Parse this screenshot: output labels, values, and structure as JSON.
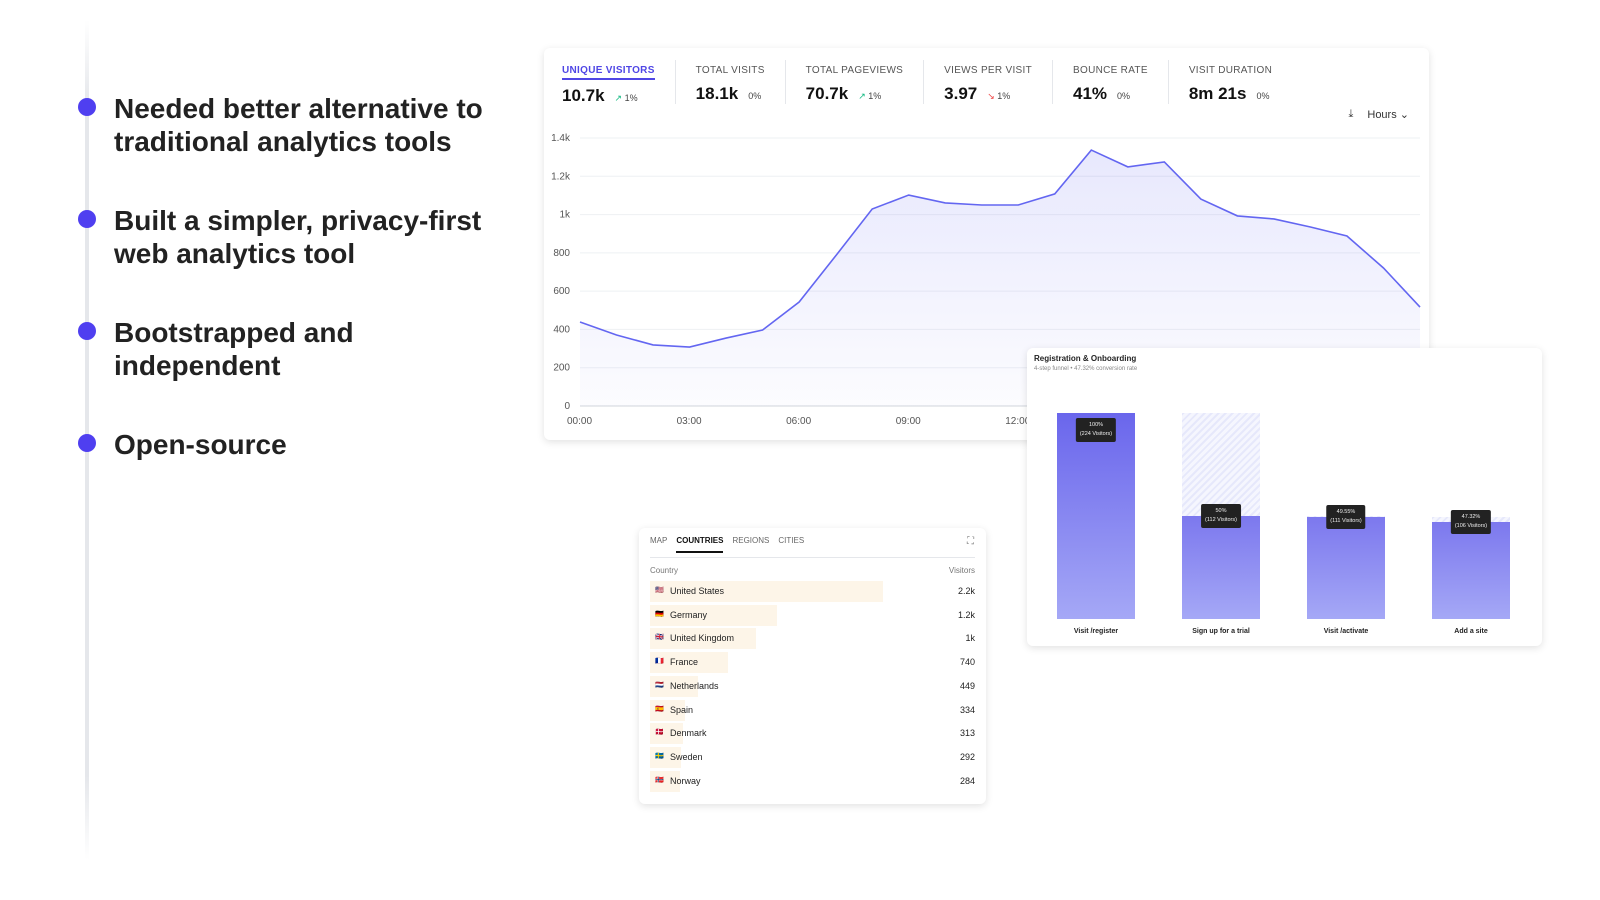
{
  "bullets": [
    "Needed better alternative to traditional analytics tools",
    "Built a simpler, privacy-first web analytics tool",
    "Bootstrapped and independent",
    "Open-source"
  ],
  "stats": [
    {
      "label": "UNIQUE VISITORS",
      "value": "10.7k",
      "change": "1%",
      "trend": "up",
      "active": true
    },
    {
      "label": "TOTAL VISITS",
      "value": "18.1k",
      "change": "0%",
      "trend": "flat"
    },
    {
      "label": "TOTAL PAGEVIEWS",
      "value": "70.7k",
      "change": "1%",
      "trend": "up"
    },
    {
      "label": "VIEWS PER VISIT",
      "value": "3.97",
      "change": "1%",
      "trend": "down"
    },
    {
      "label": "BOUNCE RATE",
      "value": "41%",
      "change": "0%",
      "trend": "flat"
    },
    {
      "label": "VISIT DURATION",
      "value": "8m 21s",
      "change": "0%",
      "trend": "flat"
    }
  ],
  "interval": {
    "label": "Hours",
    "download_icon": "download-icon"
  },
  "colors": {
    "accent": "#4f46e5",
    "bullet": "#4f3ff0",
    "up": "#10b981",
    "down": "#ef4444"
  },
  "chart_data": {
    "type": "area",
    "ylim": [
      0,
      1400
    ],
    "yticks": [
      "0",
      "200",
      "400",
      "600",
      "800",
      "1k",
      "1.2k",
      "1.4k"
    ],
    "ytick_values": [
      0,
      200,
      400,
      600,
      800,
      1000,
      1200,
      1400
    ],
    "xticks": [
      "00:00",
      "03:00",
      "06:00",
      "09:00",
      "12:00"
    ],
    "x": [
      "00:00",
      "01:00",
      "02:00",
      "03:00",
      "04:00",
      "05:00",
      "06:00",
      "07:00",
      "08:00",
      "09:00",
      "10:00",
      "11:00",
      "12:00",
      "13:00",
      "14:00",
      "15:00",
      "16:00",
      "17:00",
      "18:00",
      "19:00",
      "20:00",
      "21:00",
      "22:00",
      "23:00"
    ],
    "values": [
      439,
      371,
      319,
      308,
      355,
      397,
      543,
      784,
      1029,
      1102,
      1061,
      1050,
      1050,
      1108,
      1337,
      1249,
      1275,
      1081,
      993,
      977,
      935,
      888,
      721,
      517
    ],
    "grid": true
  },
  "funnel": {
    "title": "Registration & Onboarding",
    "subtitle": "4-step funnel • 47.32% conversion rate",
    "steps": [
      {
        "label": "Visit /register",
        "pct": "100%",
        "visitors": "(224 Visitors)",
        "value": 224
      },
      {
        "label": "Sign up for a trial",
        "pct": "50%",
        "visitors": "(112 Visitors)",
        "value": 112
      },
      {
        "label": "Visit /activate",
        "pct": "49.55%",
        "visitors": "(111 Visitors)",
        "value": 111
      },
      {
        "label": "Add a site",
        "pct": "47.32%",
        "visitors": "(106 Visitors)",
        "value": 106
      }
    ]
  },
  "countries": {
    "tabs": [
      "MAP",
      "COUNTRIES",
      "REGIONS",
      "CITIES"
    ],
    "active_tab": 1,
    "col_country": "Country",
    "col_visitors": "Visitors",
    "rows": [
      {
        "flag": "🇺🇸",
        "name": "United States",
        "value": "2.2k",
        "n": 2200
      },
      {
        "flag": "🇩🇪",
        "name": "Germany",
        "value": "1.2k",
        "n": 1200
      },
      {
        "flag": "🇬🇧",
        "name": "United Kingdom",
        "value": "1k",
        "n": 1000
      },
      {
        "flag": "🇫🇷",
        "name": "France",
        "value": "740",
        "n": 740
      },
      {
        "flag": "🇳🇱",
        "name": "Netherlands",
        "value": "449",
        "n": 449
      },
      {
        "flag": "🇪🇸",
        "name": "Spain",
        "value": "334",
        "n": 334
      },
      {
        "flag": "🇩🇰",
        "name": "Denmark",
        "value": "313",
        "n": 313
      },
      {
        "flag": "🇸🇪",
        "name": "Sweden",
        "value": "292",
        "n": 292
      },
      {
        "flag": "🇳🇴",
        "name": "Norway",
        "value": "284",
        "n": 284
      }
    ]
  }
}
